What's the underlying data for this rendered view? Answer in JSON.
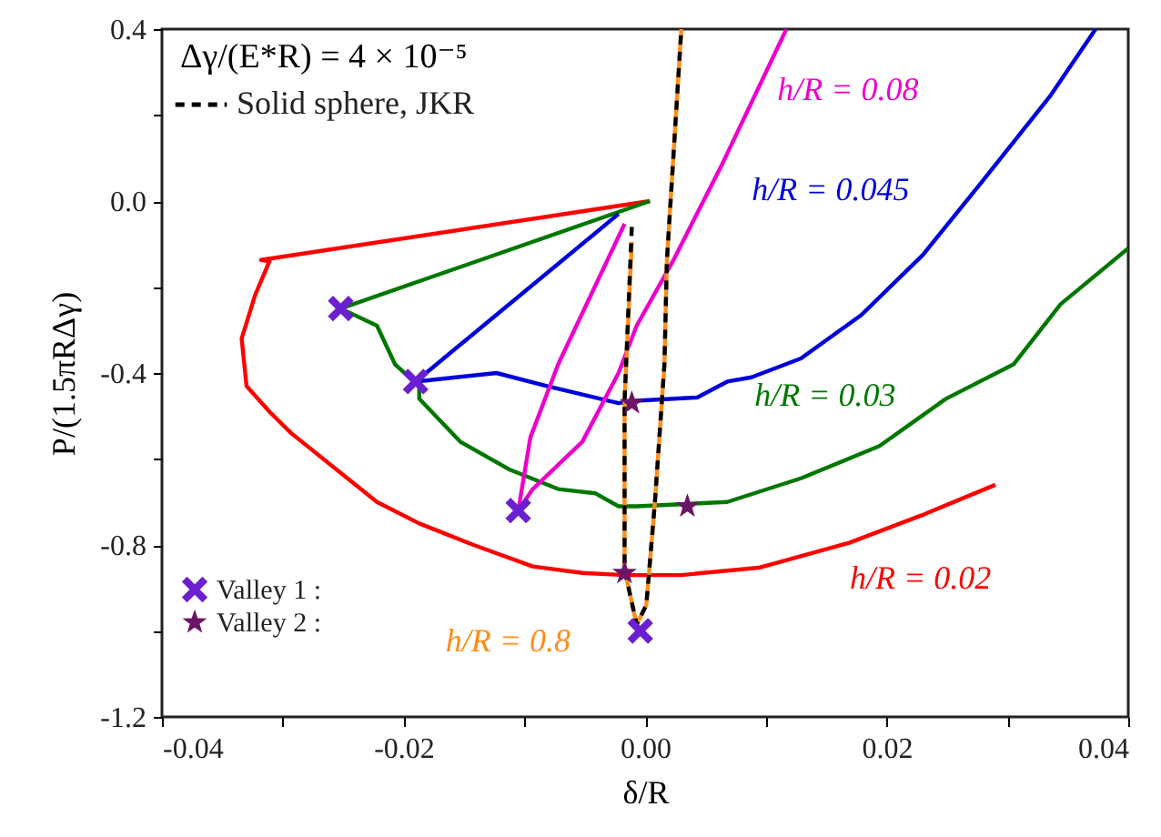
{
  "chart_data": {
    "type": "line",
    "xlabel": "δ/R",
    "ylabel": "P/(1.5πRΔγ)",
    "xlim": [
      -0.04,
      0.04
    ],
    "ylim": [
      -1.2,
      0.4
    ],
    "xticks": [
      -0.04,
      {
        "value": -0.03,
        "label": null
      },
      -0.02,
      {
        "value": -0.01,
        "label": null
      },
      {
        "value": 0,
        "label": "0.00"
      },
      {
        "value": 0.01,
        "label": null
      },
      0.02,
      {
        "value": 0.03,
        "label": null
      },
      0.04
    ],
    "yticks": [
      -1.2,
      {
        "value": -1.0,
        "label": null
      },
      -0.8,
      {
        "value": -0.6,
        "label": null
      },
      -0.4,
      {
        "value": -0.2,
        "label": null
      },
      {
        "value": 0,
        "label": "0.0"
      },
      {
        "value": 0.2,
        "label": null
      },
      0.4
    ],
    "grid": false,
    "legend": "left",
    "series": [
      {
        "name": "h/R = 0.02",
        "color": "#ff0000",
        "x": [
          0.0004,
          -0.0318,
          -0.0311,
          -0.0323,
          -0.0334,
          -0.033,
          -0.0311,
          -0.0293,
          -0.0222,
          -0.0187,
          -0.0142,
          -0.0093,
          -0.0052,
          -0.0017,
          0.003,
          0.0094,
          0.0169,
          0.023,
          0.029
        ],
        "values": [
          0.0,
          -0.137,
          -0.14,
          -0.22,
          -0.32,
          -0.43,
          -0.49,
          -0.54,
          -0.7,
          -0.75,
          -0.8,
          -0.85,
          -0.865,
          -0.87,
          -0.87,
          -0.853,
          -0.795,
          -0.73,
          -0.66
        ]
      },
      {
        "name": "h/R = 0.03",
        "color": "#007700",
        "x": [
          0.0004,
          -0.0252,
          -0.0222,
          -0.0207,
          -0.0187,
          -0.0187,
          -0.0153,
          -0.0112,
          -0.0072,
          -0.0041,
          -0.0022,
          -0.0007,
          0.0068,
          0.0129,
          0.0194,
          0.0249,
          0.0305,
          0.0344,
          0.04
        ],
        "values": [
          0.0,
          -0.25,
          -0.29,
          -0.38,
          -0.43,
          -0.46,
          -0.56,
          -0.625,
          -0.67,
          -0.68,
          -0.71,
          -0.71,
          -0.7,
          -0.645,
          -0.57,
          -0.46,
          -0.38,
          -0.24,
          -0.11
        ]
      },
      {
        "name": "h/R = 0.045",
        "color": "#0000dd",
        "x": [
          -0.0022,
          -0.019,
          -0.0123,
          -0.0082,
          -0.0022,
          -0.0011,
          0.0043,
          0.0068,
          0.0088,
          0.0129,
          0.0179,
          0.023,
          0.0279,
          0.0335,
          0.0373
        ],
        "values": [
          -0.03,
          -0.42,
          -0.4,
          -0.43,
          -0.47,
          -0.465,
          -0.457,
          -0.42,
          -0.41,
          -0.366,
          -0.265,
          -0.125,
          0.045,
          0.243,
          0.4
        ]
      },
      {
        "name": "h/R = 0.08",
        "color": "#ee00cc",
        "x": [
          -0.0017,
          -0.0072,
          -0.0095,
          -0.0105,
          -0.0093,
          -0.0052,
          -0.0022,
          -0.0007,
          0.0023,
          0.0064,
          0.0117
        ],
        "values": [
          -0.053,
          -0.38,
          -0.55,
          -0.72,
          -0.67,
          -0.56,
          -0.4,
          -0.29,
          -0.14,
          0.087,
          0.4
        ]
      },
      {
        "name": "h/R = 0.8",
        "color": "#ff8c1a",
        "x": [
          -0.0011,
          -0.0017,
          -0.0017,
          -0.0007,
          0.0001,
          0.0008,
          0.0016,
          0.0018,
          0.003
        ],
        "values": [
          -0.095,
          -0.465,
          -0.857,
          -0.985,
          -0.94,
          -0.705,
          -0.38,
          -0.14,
          0.4
        ]
      },
      {
        "name": "Solid sphere,  JKR",
        "color": "#000000",
        "line_style": "dashed",
        "x": [
          -0.0011,
          -0.0017,
          -0.0017,
          -0.0007,
          0.0001,
          0.0008,
          0.0016,
          0.0018,
          0.003
        ],
        "values": [
          -0.06,
          -0.465,
          -0.857,
          -0.985,
          -0.94,
          -0.705,
          -0.38,
          -0.14,
          0.4
        ]
      },
      {
        "type": "scatter",
        "name": "Valley 1 :",
        "color": "#6a1fd0",
        "marker": "cross",
        "x": [
          -0.0252,
          -0.019,
          -0.0105,
          -0.0004
        ],
        "values": [
          -0.25,
          -0.42,
          -0.72,
          -1.0
        ]
      },
      {
        "type": "scatter",
        "name": "Valley 2 :",
        "color": "#6b1566",
        "marker": "star",
        "x": [
          -0.0011,
          0.0035,
          -0.0017
        ],
        "values": [
          -0.47,
          -0.71,
          -0.865
        ]
      }
    ],
    "annotations": [
      "Δγ/(E*R) = 4 × 10⁻⁵"
    ]
  }
}
